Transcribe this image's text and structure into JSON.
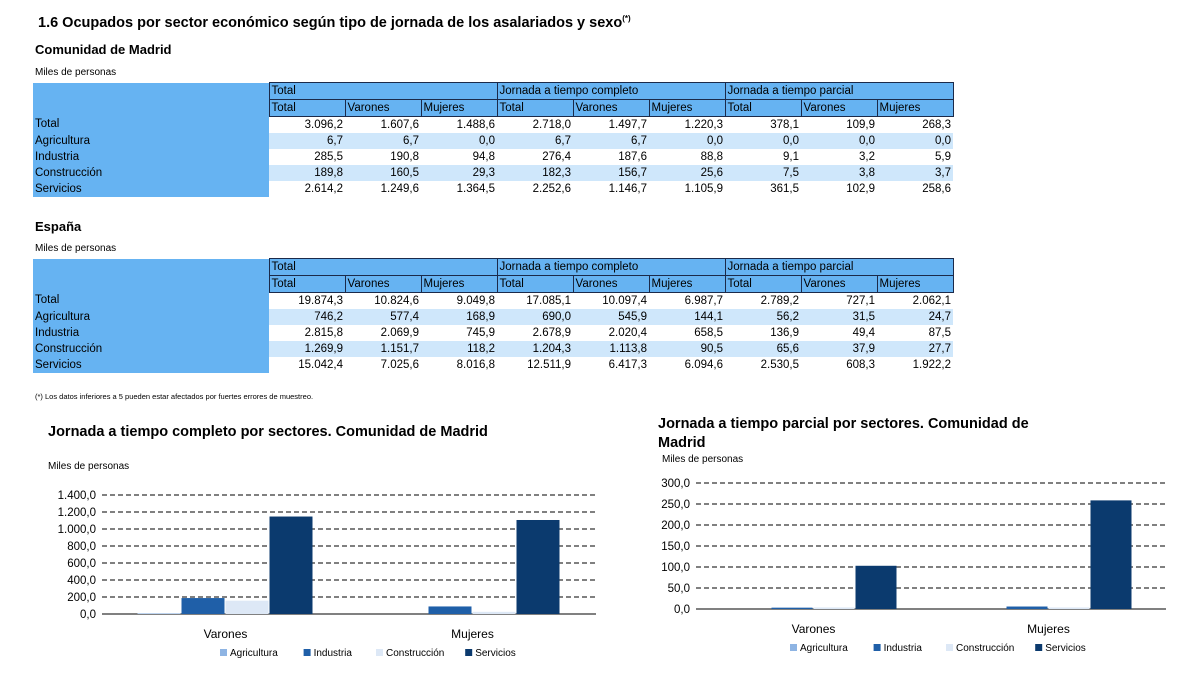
{
  "title": "1.6  Ocupados por sector económico según tipo de jornada de los asalariados y sexo",
  "title_sup": "(*)",
  "units": "Miles de personas",
  "group_headers": [
    "Total",
    "Jornada a tiempo completo",
    "Jornada a tiempo parcial"
  ],
  "sub_headers": [
    "Total",
    "Varones",
    "Mujeres",
    "Total",
    "Varones",
    "Mujeres",
    "Total",
    "Varones",
    "Mujeres"
  ],
  "madrid": {
    "label": "Comunidad de Madrid",
    "rows": [
      {
        "label": "Total",
        "values": [
          "3.096,2",
          "1.607,6",
          "1.488,6",
          "2.718,0",
          "1.497,7",
          "1.220,3",
          "378,1",
          "109,9",
          "268,3"
        ]
      },
      {
        "label": "Agricultura",
        "values": [
          "6,7",
          "6,7",
          "0,0",
          "6,7",
          "6,7",
          "0,0",
          "0,0",
          "0,0",
          "0,0"
        ]
      },
      {
        "label": "Industria",
        "values": [
          "285,5",
          "190,8",
          "94,8",
          "276,4",
          "187,6",
          "88,8",
          "9,1",
          "3,2",
          "5,9"
        ]
      },
      {
        "label": "Construcción",
        "values": [
          "189,8",
          "160,5",
          "29,3",
          "182,3",
          "156,7",
          "25,6",
          "7,5",
          "3,8",
          "3,7"
        ]
      },
      {
        "label": "Servicios",
        "values": [
          "2.614,2",
          "1.249,6",
          "1.364,5",
          "2.252,6",
          "1.146,7",
          "1.105,9",
          "361,5",
          "102,9",
          "258,6"
        ]
      }
    ]
  },
  "espana": {
    "label": "España",
    "rows": [
      {
        "label": "Total",
        "values": [
          "19.874,3",
          "10.824,6",
          "9.049,8",
          "17.085,1",
          "10.097,4",
          "6.987,7",
          "2.789,2",
          "727,1",
          "2.062,1"
        ]
      },
      {
        "label": "Agricultura",
        "values": [
          "746,2",
          "577,4",
          "168,9",
          "690,0",
          "545,9",
          "144,1",
          "56,2",
          "31,5",
          "24,7"
        ]
      },
      {
        "label": "Industria",
        "values": [
          "2.815,8",
          "2.069,9",
          "745,9",
          "2.678,9",
          "2.020,4",
          "658,5",
          "136,9",
          "49,4",
          "87,5"
        ]
      },
      {
        "label": "Construcción",
        "values": [
          "1.269,9",
          "1.151,7",
          "118,2",
          "1.204,3",
          "1.113,8",
          "90,5",
          "65,6",
          "37,9",
          "27,7"
        ]
      },
      {
        "label": "Servicios",
        "values": [
          "15.042,4",
          "7.025,6",
          "8.016,8",
          "12.511,9",
          "6.417,3",
          "6.094,6",
          "2.530,5",
          "608,3",
          "1.922,2"
        ]
      }
    ]
  },
  "footnote": "(*) Los datos inferiores a 5 pueden estar afectados por fuertes errores de muestreo.",
  "chart_data": [
    {
      "type": "bar",
      "title": "Jornada a tiempo completo por sectores. Comunidad de Madrid",
      "ylabel": "Miles de personas",
      "categories": [
        "Varones",
        "Mujeres"
      ],
      "ylim": [
        0,
        1400
      ],
      "yticks": [
        0,
        200,
        400,
        600,
        800,
        1000,
        1200,
        1400
      ],
      "ytick_labels": [
        "0,0",
        "200,0",
        "400,0",
        "600,0",
        "800,0",
        "1.000,0",
        "1.200,0",
        "1.400,0"
      ],
      "grid": true,
      "legend": "bottom",
      "series": [
        {
          "name": "Agricultura",
          "color": "#8eb4e3",
          "values": [
            6.7,
            0.0
          ]
        },
        {
          "name": "Industria",
          "color": "#1f5fa8",
          "values": [
            187.6,
            88.8
          ]
        },
        {
          "name": "Construcción",
          "color": "#dde8f6",
          "values": [
            156.7,
            25.6
          ]
        },
        {
          "name": "Servicios",
          "color": "#0b3a6e",
          "values": [
            1146.7,
            1105.9
          ]
        }
      ]
    },
    {
      "type": "bar",
      "title": "Jornada a tiempo parcial por sectores. Comunidad de Madrid",
      "ylabel": "Miles de personas",
      "categories": [
        "Varones",
        "Mujeres"
      ],
      "ylim": [
        0,
        300
      ],
      "yticks": [
        0,
        50,
        100,
        150,
        200,
        250,
        300
      ],
      "ytick_labels": [
        "0,0",
        "50,0",
        "100,0",
        "150,0",
        "200,0",
        "250,0",
        "300,0"
      ],
      "grid": true,
      "legend": "bottom",
      "series": [
        {
          "name": "Agricultura",
          "color": "#8eb4e3",
          "values": [
            0.0,
            0.0
          ]
        },
        {
          "name": "Industria",
          "color": "#1f5fa8",
          "values": [
            3.2,
            5.9
          ]
        },
        {
          "name": "Construcción",
          "color": "#dde8f6",
          "values": [
            3.8,
            3.7
          ]
        },
        {
          "name": "Servicios",
          "color": "#0b3a6e",
          "values": [
            102.9,
            258.6
          ]
        }
      ]
    }
  ]
}
